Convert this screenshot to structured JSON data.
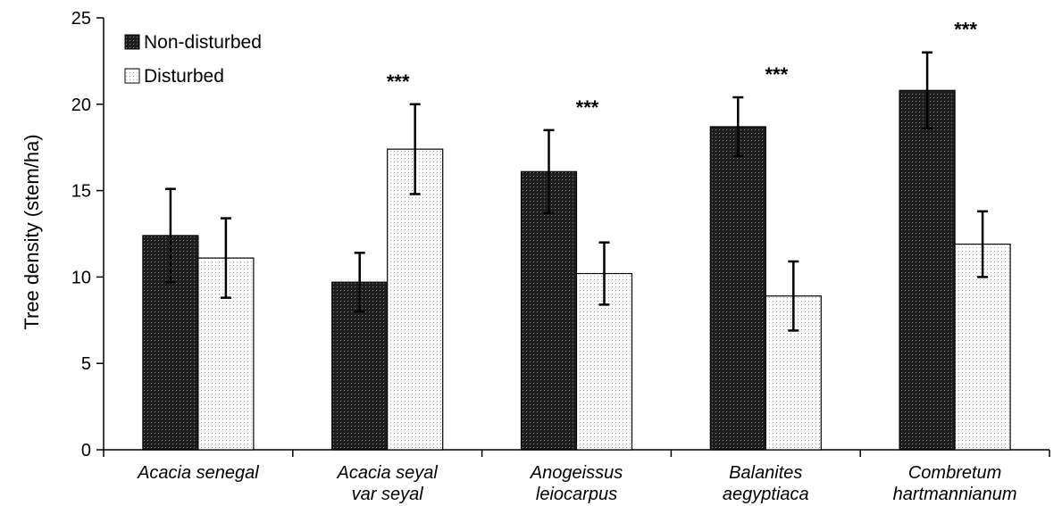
{
  "chart_data": {
    "type": "bar",
    "ylabel": "Tree density (stem/ha)",
    "ylim": [
      0,
      25
    ],
    "yticks": [
      0,
      5,
      10,
      15,
      20,
      25
    ],
    "legend_position": "top-left",
    "categories": [
      [
        "Acacia senegal"
      ],
      [
        "Acacia seyal",
        "var seyal"
      ],
      [
        "Anogeissus",
        "leiocarpus"
      ],
      [
        "Balanites",
        "aegyptiaca"
      ],
      [
        "Combretum",
        "hartmannianum"
      ]
    ],
    "series": [
      {
        "name": "Non-disturbed",
        "color": "#1a1a1a",
        "pattern": "dark-dotted",
        "values": [
          12.4,
          9.7,
          16.1,
          18.7,
          20.8
        ],
        "errors": [
          2.7,
          1.7,
          2.4,
          1.7,
          2.2
        ]
      },
      {
        "name": "Disturbed",
        "color": "#f4f4f4",
        "pattern": "light-dotted",
        "values": [
          11.1,
          17.4,
          10.2,
          8.9,
          11.9
        ],
        "errors": [
          2.3,
          2.6,
          1.8,
          2.0,
          1.9
        ]
      }
    ],
    "significance": [
      "",
      "***",
      "***",
      "***",
      "***"
    ]
  }
}
